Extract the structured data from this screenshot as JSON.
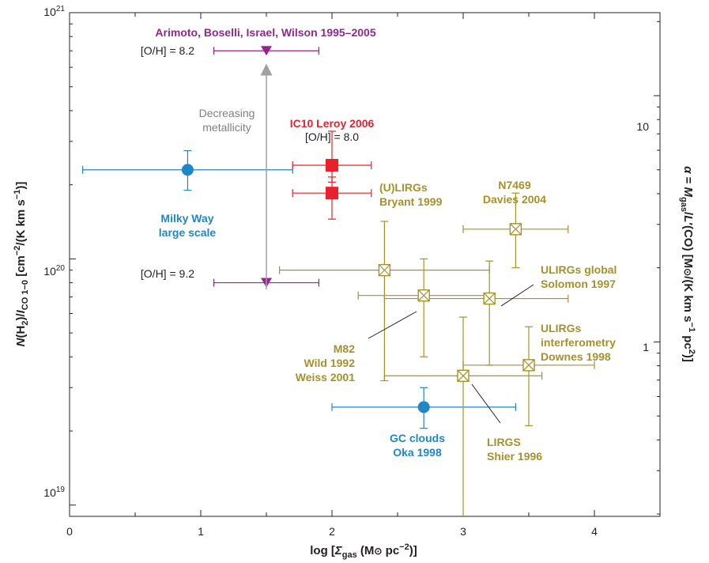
{
  "chart_data": {
    "type": "scatter",
    "xlabel": "log [Σgas (M⊙ pc⁻²)]",
    "ylabel": "N(H2)/ICO 1–0 [cm⁻²/(K km s⁻¹)]",
    "y2label": "α = Mgas/L′(CO) [M⊙/(K km s⁻¹ pc²)]",
    "xlim": [
      0,
      4.5
    ],
    "ylim": [
      9e+18,
      1e+21
    ],
    "yscale": "log",
    "y2scale": "log",
    "x_ticks": [
      "0",
      "1",
      "2",
      "3",
      "4"
    ],
    "y_ticks": [
      "10^19",
      "10^20",
      "10^21"
    ],
    "y2_ticks": [
      "1",
      "10"
    ],
    "colors": {
      "milky_way": "#1f86c8",
      "ic10": "#e8212a",
      "metallicity": "#93278f",
      "lirg": "#a69128",
      "arrow": "#a0a0a0",
      "axis": "#231f20"
    },
    "series": [
      {
        "color": "milky_way",
        "marker": "circle",
        "points": [
          {
            "x": 0.9,
            "y": 2.3e+20,
            "xerr": [
              0.1,
              1.7
            ],
            "yerr": [
              1.9e+20,
              2.75e+20
            ]
          },
          {
            "x": 2.7,
            "y": 2.5e+19,
            "xerr": [
              2.0,
              3.4
            ],
            "yerr": [
              2.05e+19,
              3e+19
            ]
          }
        ]
      },
      {
        "color": "ic10",
        "marker": "square",
        "points": [
          {
            "x": 2.0,
            "y": 2.4e+20,
            "xerr": [
              1.7,
              2.3
            ],
            "yerr": [
              2.05e+20,
              3.3e+20
            ]
          },
          {
            "x": 2.0,
            "y": 1.85e+20,
            "xerr": [
              1.7,
              2.3
            ],
            "yerr": [
              1.45e+20,
              2.15e+20
            ]
          }
        ]
      },
      {
        "color": "metallicity",
        "marker": "triangle-down",
        "points": [
          {
            "x": 1.5,
            "y": 7e+20,
            "xerr": [
              1.1,
              1.9
            ]
          },
          {
            "x": 1.5,
            "y": 8e+19,
            "xerr": [
              1.1,
              1.9
            ]
          }
        ]
      },
      {
        "color": "lirg",
        "marker": "crossed-square",
        "points": [
          {
            "x": 2.4,
            "y": 9e+19,
            "xerr": [
              1.6,
              3.2
            ],
            "yerr": [
              3.2e+19,
              1.42e+20
            ]
          },
          {
            "x": 2.7,
            "y": 7.1e+19,
            "xerr": [
              2.2,
              3.2
            ],
            "yerr": [
              4e+19,
              1e+20
            ]
          },
          {
            "x": 3.2,
            "y": 6.9e+19,
            "xerr": [
              2.4,
              3.8
            ],
            "yerr": [
              3.7e+19,
              9.8e+19
            ]
          },
          {
            "x": 3.4,
            "y": 1.32e+20,
            "xerr": [
              3.0,
              3.8
            ],
            "yerr": [
              9.2e+19,
              1.85e+20
            ]
          },
          {
            "x": 3.5,
            "y": 3.7e+19,
            "xerr": [
              3.0,
              4.0
            ],
            "yerr": [
              2.1e+19,
              5.3e+19
            ]
          },
          {
            "x": 3.0,
            "y": 3.35e+19,
            "xerr": [
              2.4,
              3.6
            ],
            "yerr": [
              9e+18,
              5.8e+19
            ]
          }
        ]
      }
    ],
    "annotations": {
      "arimoto": "Arimoto, Boselli, Israel, Wilson 1995–2005",
      "oh82": "[O/H] = 8.2",
      "oh92": "[O/H] = 9.2",
      "oh80": "[O/H] = 8.0",
      "decreasing_1": "Decreasing",
      "decreasing_2": "metallicity",
      "ic10": "IC10 Leroy 2006",
      "mw_1": "Milky Way",
      "mw_2": "large scale",
      "ulirgs_1": "(U)LIRGs",
      "ulirgs_2": "Bryant 1999",
      "n7469_1": "N7469",
      "n7469_2": "Davies 2004",
      "ulirgs_global_1": "ULIRGs global",
      "ulirgs_global_2": "Solomon 1997",
      "m82_1": "M82",
      "m82_2": "Wild 1992",
      "m82_3": "Weiss 2001",
      "ulirgs_int_1": "ULIRGs",
      "ulirgs_int_2": "interferometry",
      "ulirgs_int_3": "Downes 1998",
      "gc_1": "GC clouds",
      "gc_2": "Oka 1998",
      "lirgs_1": "LIRGS",
      "lirgs_2": "Shier 1996"
    }
  }
}
